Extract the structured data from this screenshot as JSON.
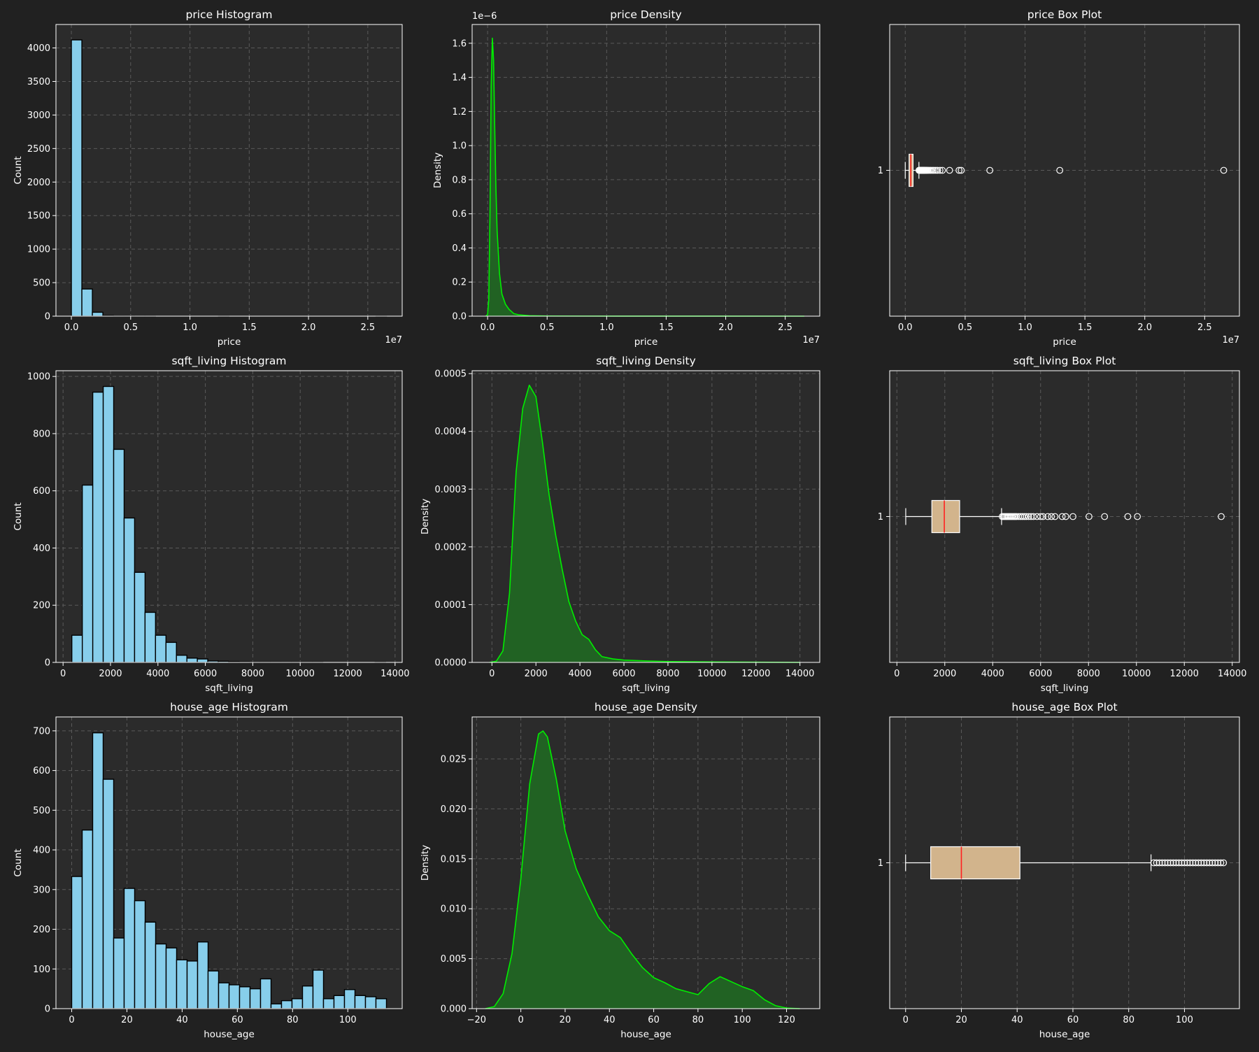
{
  "theme": {
    "background": "#212121",
    "plot_background": "#2b2b2b",
    "grid_color": "#5a5a5a",
    "text_color": "#ffffff",
    "hist_fill": "#87ceeb",
    "hist_edge": "#000000",
    "density_line": "#00ee00",
    "density_fill": "#216223",
    "box_fill": "#d2b48c",
    "median_color": "#ff2020"
  },
  "chart_data": [
    {
      "type": "bar",
      "title": "price Histogram",
      "xlabel": "price",
      "ylabel": "Count",
      "grid": true,
      "offset_label": "1e7",
      "xlim": [
        -1300000.0,
        27900000.0
      ],
      "ylim": [
        0,
        4350
      ],
      "xticks": [
        0,
        5000000,
        10000000,
        15000000,
        20000000,
        25000000
      ],
      "xtick_labels": [
        "0.0",
        "0.5",
        "1.0",
        "1.5",
        "2.0",
        "2.5"
      ],
      "yticks": [
        0,
        500,
        1000,
        1500,
        2000,
        2500,
        3000,
        3500,
        4000
      ],
      "ytick_labels": [
        "0",
        "500",
        "1000",
        "1500",
        "2000",
        "2500",
        "3000",
        "3500",
        "4000"
      ],
      "bin_start": 0,
      "bin_width": 886000,
      "values": [
        4120,
        405,
        58,
        8,
        3,
        2,
        1,
        1,
        0,
        0,
        0,
        0,
        0,
        0,
        1,
        0,
        0,
        0,
        0,
        0,
        0,
        0,
        0,
        0,
        0,
        0,
        0,
        0,
        0,
        1
      ]
    },
    {
      "type": "area",
      "title": "price Density",
      "xlabel": "price",
      "ylabel": "Density",
      "grid": true,
      "offset_label": "1e7",
      "y_offset_label": "1e−6",
      "xlim": [
        -1300000.0,
        27900000.0
      ],
      "ylim": [
        0,
        1.71e-06
      ],
      "xticks": [
        0,
        5000000,
        10000000,
        15000000,
        20000000,
        25000000
      ],
      "xtick_labels": [
        "0.0",
        "0.5",
        "1.0",
        "1.5",
        "2.0",
        "2.5"
      ],
      "yticks": [
        0,
        2e-07,
        4e-07,
        6e-07,
        8e-07,
        1e-06,
        1.2e-06,
        1.4e-06,
        1.6e-06
      ],
      "ytick_labels": [
        "0.0",
        "0.2",
        "0.4",
        "0.6",
        "0.8",
        "1.0",
        "1.2",
        "1.4",
        "1.6"
      ],
      "x": [
        -150000,
        0,
        100000,
        200000,
        300000,
        400000,
        500000,
        600000,
        700000,
        800000,
        1000000,
        1200000,
        1500000,
        1800000,
        2200000,
        2600000,
        3500000,
        5000000,
        8000000,
        15000000,
        26600000
      ],
      "y": [
        0,
        1e-08,
        1e-07,
        6e-07,
        1.35e-06,
        1.63e-06,
        1.5e-06,
        1.1e-06,
        7.5e-07,
        5e-07,
        2.5e-07,
        1.3e-07,
        7e-08,
        4e-08,
        1.5e-08,
        8e-09,
        3e-09,
        1e-09,
        5e-10,
        2e-10,
        0
      ]
    },
    {
      "type": "box",
      "title": "price Box Plot",
      "xlabel": "price",
      "grid": true,
      "offset_label": "1e7",
      "category": "1",
      "xlim": [
        -1300000.0,
        27900000.0
      ],
      "xticks": [
        0,
        5000000,
        10000000,
        15000000,
        20000000,
        25000000
      ],
      "xtick_labels": [
        "0.0",
        "0.5",
        "1.0",
        "1.5",
        "2.0",
        "2.5"
      ],
      "whisker_low": 0,
      "q1": 320000,
      "median": 460000,
      "q3": 650000,
      "whisker_high": 1140000,
      "outliers": [
        1150000,
        1180000,
        1210000,
        1240000,
        1270000,
        1300000,
        1330000,
        1360000,
        1390000,
        1420000,
        1450000,
        1480000,
        1510000,
        1540000,
        1570000,
        1600000,
        1650000,
        1700000,
        1750000,
        1800000,
        1870000,
        1950000,
        2050000,
        2150000,
        2280000,
        2400000,
        2550000,
        2700000,
        2900000,
        3100000,
        3700000,
        4490000,
        4670000,
        7060000,
        12900000,
        26590000
      ]
    },
    {
      "type": "bar",
      "title": "sqft_living Histogram",
      "xlabel": "sqft_living",
      "ylabel": "Count",
      "grid": true,
      "xlim": [
        -300,
        14300
      ],
      "ylim": [
        0,
        1020
      ],
      "xticks": [
        0,
        2000,
        4000,
        6000,
        8000,
        10000,
        12000,
        14000
      ],
      "xtick_labels": [
        "0",
        "2000",
        "4000",
        "6000",
        "8000",
        "10000",
        "12000",
        "14000"
      ],
      "yticks": [
        0,
        200,
        400,
        600,
        800,
        1000
      ],
      "ytick_labels": [
        "0",
        "200",
        "400",
        "600",
        "800",
        "1000"
      ],
      "bin_start": 370,
      "bin_width": 441,
      "values": [
        95,
        620,
        945,
        965,
        745,
        505,
        315,
        175,
        95,
        70,
        25,
        15,
        12,
        5,
        4,
        3,
        2,
        1,
        1,
        1,
        1,
        1,
        1,
        1,
        0,
        0,
        0,
        0,
        0,
        1
      ]
    },
    {
      "type": "area",
      "title": "sqft_living Density",
      "xlabel": "sqft_living",
      "ylabel": "Density",
      "grid": true,
      "xlim": [
        -900,
        14900
      ],
      "ylim": [
        0,
        0.000505
      ],
      "xticks": [
        0,
        2000,
        4000,
        6000,
        8000,
        10000,
        12000,
        14000
      ],
      "xtick_labels": [
        "0",
        "2000",
        "4000",
        "6000",
        "8000",
        "10000",
        "12000",
        "14000"
      ],
      "yticks": [
        0,
        0.0001,
        0.0002,
        0.0003,
        0.0004,
        0.0005
      ],
      "ytick_labels": [
        "0.0000",
        "0.0001",
        "0.0002",
        "0.0003",
        "0.0004",
        "0.0005"
      ],
      "x": [
        -100,
        200,
        500,
        800,
        1100,
        1400,
        1700,
        2000,
        2300,
        2600,
        2900,
        3200,
        3500,
        3800,
        4100,
        4400,
        4700,
        5000,
        5500,
        6000,
        7000,
        8000,
        10000,
        12000,
        14000
      ],
      "y": [
        0,
        2e-06,
        2e-05,
        0.00012,
        0.00033,
        0.00044,
        0.00048,
        0.00046,
        0.00038,
        0.00029,
        0.00022,
        0.00016,
        0.000105,
        7.2e-05,
        4.8e-05,
        4e-05,
        2.2e-05,
        1e-05,
        6e-06,
        4e-06,
        2.5e-06,
        1.5e-06,
        8e-07,
        4e-07,
        0
      ]
    },
    {
      "type": "box",
      "title": "sqft_living Box Plot",
      "xlabel": "sqft_living",
      "grid": true,
      "category": "1",
      "xlim": [
        -300,
        14300
      ],
      "xticks": [
        0,
        2000,
        4000,
        6000,
        8000,
        10000,
        12000,
        14000
      ],
      "xtick_labels": [
        "0",
        "2000",
        "4000",
        "6000",
        "8000",
        "10000",
        "12000",
        "14000"
      ],
      "whisker_low": 370,
      "q1": 1460,
      "median": 1980,
      "q3": 2620,
      "whisker_high": 4370,
      "outliers": [
        4400,
        4450,
        4500,
        4550,
        4600,
        4650,
        4700,
        4750,
        4800,
        4850,
        4900,
        4950,
        5000,
        5080,
        5160,
        5240,
        5320,
        5400,
        5500,
        5600,
        5700,
        5850,
        6000,
        6100,
        6300,
        6450,
        6600,
        6900,
        7050,
        7350,
        8020,
        8670,
        9640,
        10040,
        13540
      ]
    },
    {
      "type": "bar",
      "title": "house_age Histogram",
      "xlabel": "house_age",
      "ylabel": "Count",
      "grid": true,
      "xlim": [
        -5.7,
        119.7
      ],
      "ylim": [
        0,
        735
      ],
      "xticks": [
        0,
        20,
        40,
        60,
        80,
        100
      ],
      "xtick_labels": [
        "0",
        "20",
        "40",
        "60",
        "80",
        "100"
      ],
      "yticks": [
        0,
        100,
        200,
        300,
        400,
        500,
        600,
        700
      ],
      "ytick_labels": [
        "0",
        "100",
        "200",
        "300",
        "400",
        "500",
        "600",
        "700"
      ],
      "bin_start": 0,
      "bin_width": 3.8,
      "values": [
        333,
        450,
        695,
        578,
        178,
        303,
        272,
        218,
        163,
        153,
        123,
        120,
        168,
        95,
        65,
        60,
        55,
        50,
        75,
        12,
        20,
        25,
        57,
        97,
        25,
        33,
        48,
        33,
        30,
        25
      ]
    },
    {
      "type": "area",
      "title": "house_age Density",
      "xlabel": "house_age",
      "ylabel": "Density",
      "grid": true,
      "xlim": [
        -22,
        135
      ],
      "ylim": [
        0,
        0.0292
      ],
      "xticks": [
        -20,
        0,
        20,
        40,
        60,
        80,
        100,
        120
      ],
      "xtick_labels": [
        "−20",
        "0",
        "20",
        "40",
        "60",
        "80",
        "100",
        "120"
      ],
      "yticks": [
        0,
        0.005,
        0.01,
        0.015,
        0.02,
        0.025
      ],
      "ytick_labels": [
        "0.000",
        "0.005",
        "0.010",
        "0.015",
        "0.020",
        "0.025"
      ],
      "x": [
        -16,
        -12,
        -8,
        -4,
        0,
        4,
        8,
        10,
        12,
        16,
        20,
        25,
        30,
        35,
        40,
        45,
        50,
        55,
        60,
        65,
        70,
        75,
        80,
        85,
        90,
        95,
        100,
        105,
        110,
        115,
        120,
        126
      ],
      "y": [
        0,
        0.0002,
        0.0015,
        0.0055,
        0.013,
        0.0225,
        0.0275,
        0.0278,
        0.0272,
        0.023,
        0.0178,
        0.014,
        0.0115,
        0.0092,
        0.0078,
        0.0071,
        0.0055,
        0.0041,
        0.0031,
        0.0026,
        0.002,
        0.0017,
        0.0014,
        0.0025,
        0.0032,
        0.0027,
        0.0022,
        0.0018,
        0.0009,
        0.0003,
        6e-05,
        0
      ]
    },
    {
      "type": "box",
      "title": "house_age Box Plot",
      "xlabel": "house_age",
      "grid": true,
      "category": "1",
      "xlim": [
        -5.7,
        119.7
      ],
      "xticks": [
        0,
        20,
        40,
        60,
        80,
        100
      ],
      "xtick_labels": [
        "0",
        "20",
        "40",
        "60",
        "80",
        "100"
      ],
      "whisker_low": 0,
      "q1": 9,
      "median": 20,
      "q3": 41,
      "whisker_high": 88,
      "outliers": [
        89,
        90,
        91,
        92,
        93,
        94,
        95,
        96,
        97,
        98,
        99,
        100,
        101,
        102,
        103,
        104,
        105,
        106,
        107,
        108,
        109,
        110,
        111,
        112,
        113,
        114
      ]
    }
  ]
}
